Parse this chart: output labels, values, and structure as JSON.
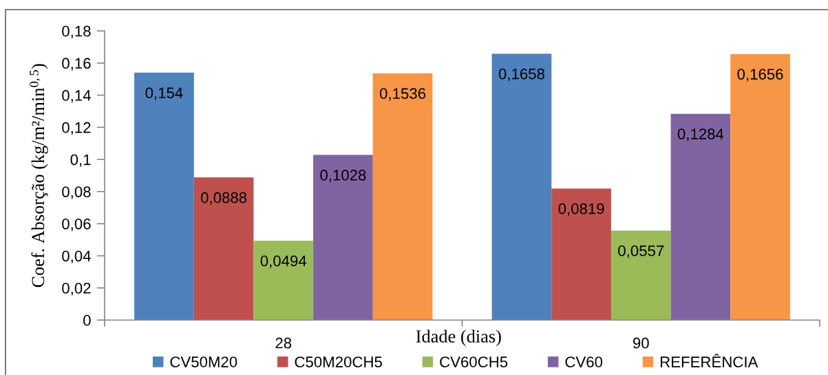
{
  "chart_data": {
    "type": "bar",
    "xlabel": "Idade (dias)",
    "ylabel": "Coef. Absorção (kg/m²/min$^{0,5}$)",
    "categories": [
      "28",
      "90"
    ],
    "series": [
      {
        "name": "CV50M20",
        "color": "#4f81bd",
        "values": [
          0.154,
          0.1658
        ],
        "value_labels": [
          "0,154",
          "0,1658"
        ]
      },
      {
        "name": "C50M20CH5",
        "color": "#c0504d",
        "values": [
          0.0888,
          0.0819
        ],
        "value_labels": [
          "0,0888",
          "0,0819"
        ]
      },
      {
        "name": "CV60CH5",
        "color": "#9bbb59",
        "values": [
          0.0494,
          0.0557
        ],
        "value_labels": [
          "0,0494",
          "0,0557"
        ]
      },
      {
        "name": "CV60",
        "color": "#8064a2",
        "values": [
          0.1028,
          0.1284
        ],
        "value_labels": [
          "0,1028",
          "0,1284"
        ]
      },
      {
        "name": "REFERÊNCIA",
        "color": "#f79646",
        "values": [
          0.1536,
          0.1656
        ],
        "value_labels": [
          "0,1536",
          "0,1656"
        ]
      }
    ],
    "ylim": [
      0,
      0.18
    ],
    "yticks": [
      0,
      {
        "value": 0.02,
        "label": "0,02"
      },
      {
        "value": 0.04,
        "label": "0,04"
      },
      {
        "value": 0.06,
        "label": "0,06"
      },
      {
        "value": 0.08,
        "label": "0,08"
      },
      {
        "value": 0.1,
        "label": "0,1"
      },
      {
        "value": 0.12,
        "label": "0,12"
      },
      {
        "value": 0.14,
        "label": "0,14"
      },
      {
        "value": 0.16,
        "label": "0,16"
      },
      {
        "value": 0.18,
        "label": "0,18"
      }
    ],
    "grid": false,
    "legend": "bottom"
  }
}
